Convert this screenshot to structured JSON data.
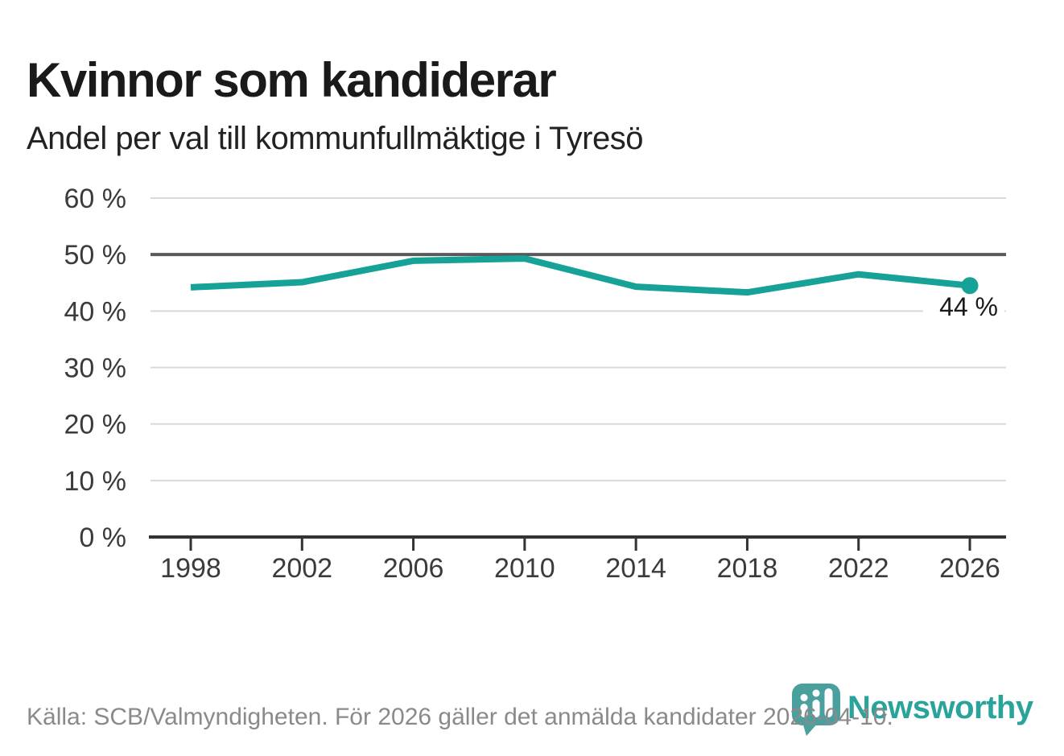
{
  "chart_data": {
    "type": "line",
    "title": "Kvinnor som kandiderar",
    "subtitle": "Andel per val till kommunfullmäktige i Tyresö",
    "x": [
      1998,
      2002,
      2006,
      2010,
      2014,
      2018,
      2022,
      2026
    ],
    "x_tick_labels": [
      "1998",
      "2002",
      "2006",
      "2010",
      "2014",
      "2018",
      "2022",
      "2026"
    ],
    "values": [
      44.2,
      45.1,
      48.9,
      49.3,
      44.3,
      43.3,
      46.5,
      44.5
    ],
    "unit": "%",
    "ylim": [
      0,
      60
    ],
    "y_tick_step": 10,
    "y_tick_labels": [
      "0 %",
      "10 %",
      "20 %",
      "30 %",
      "40 %",
      "50 %",
      "60 %"
    ],
    "reference_line": 50,
    "end_point_label": "44 %",
    "grid": true,
    "legend_position": "none",
    "marker": "end-point-only"
  },
  "footer": {
    "source_text": "Källa: SCB/Valmyndigheten. För 2026 gäller det anmälda kandidater 2026-04-10.",
    "brand_name": "Newsworthy",
    "logo_icon": "newsworthy-pin-barchart-icon"
  },
  "colors": {
    "line": "#16a296",
    "grid": "#d9d9d9",
    "reference_line": "#59595b",
    "axis": "#333333",
    "tick_label": "#3b3b3b",
    "title": "#1a1a1a",
    "subtitle": "#222222",
    "end_label": "#1a1a1a",
    "source_text": "#8a8a8a",
    "logo_icon": "#4aa09d",
    "logo_text": "#2aa39a",
    "background": "#ffffff"
  }
}
